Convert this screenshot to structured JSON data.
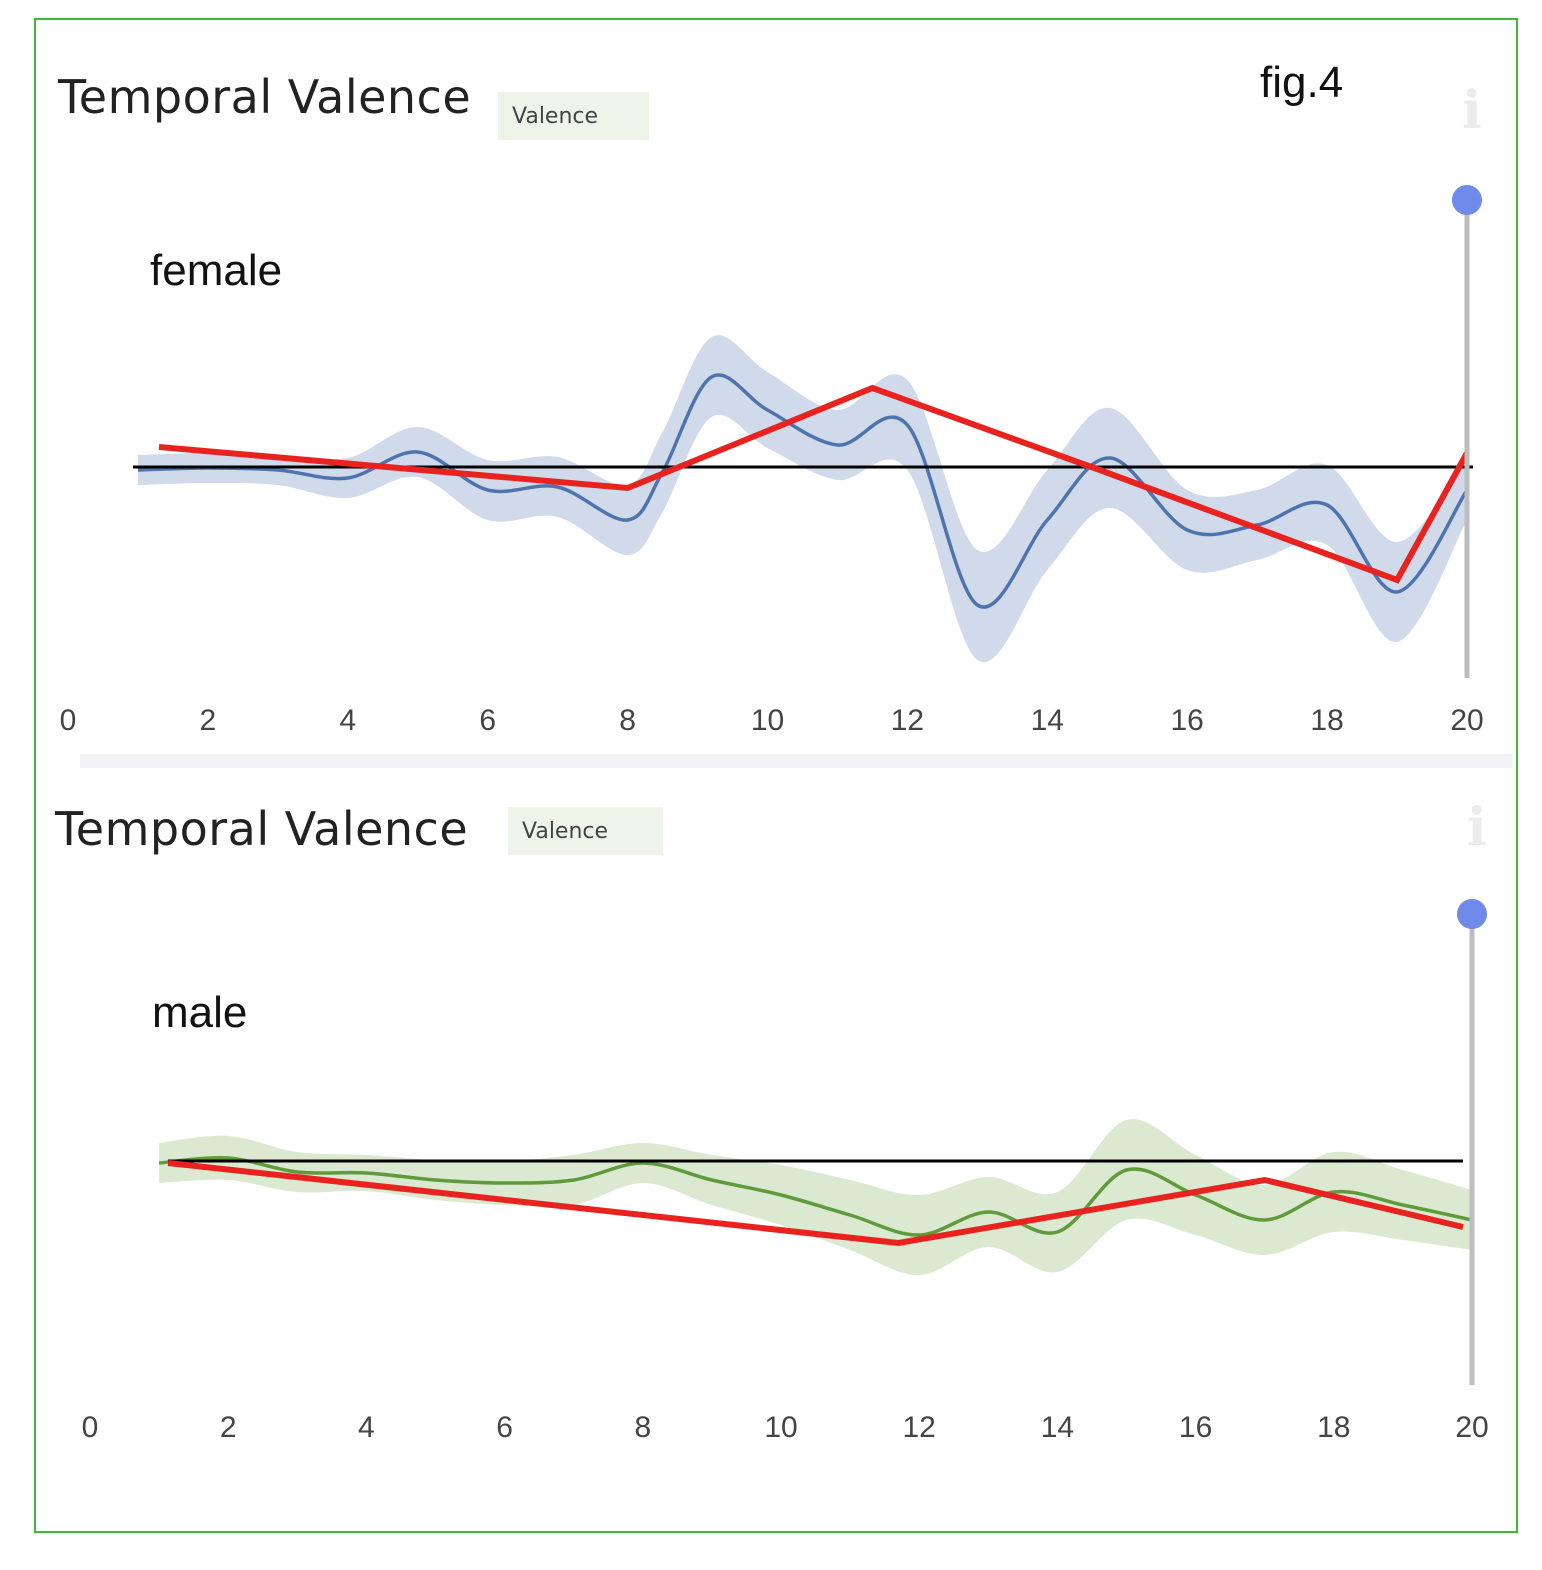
{
  "figure_label": "fig.4",
  "panels": [
    {
      "title": "Temporal Valence",
      "badge": "Valence",
      "group_label": "female"
    },
    {
      "title": "Temporal Valence",
      "badge": "Valence",
      "group_label": "male"
    }
  ],
  "colors": {
    "female": "#4f74ad",
    "female_band": "#cdd8ea",
    "male": "#5f9a3c",
    "male_band": "#d8e8cc",
    "trend": "#e8231f",
    "baseline": "#000000",
    "slider": "#6f8ae8",
    "frame": "#3cb83c"
  },
  "chart_data": [
    {
      "type": "line",
      "title": "Temporal Valence",
      "group": "female",
      "xlabel": "",
      "ylabel": "",
      "xlim": [
        0,
        20
      ],
      "xticks": [
        "0",
        "2",
        "4",
        "6",
        "8",
        "10",
        "12",
        "14",
        "16",
        "18",
        "20"
      ],
      "ylim": [
        -2.5,
        3.5
      ],
      "baseline": 0,
      "slider_position": 20,
      "series": [
        {
          "name": "mean",
          "x": [
            1,
            2,
            3,
            4,
            5,
            6,
            7,
            8,
            8.5,
            9.2,
            10,
            11,
            12,
            13,
            14,
            14.9,
            16,
            17,
            18,
            19,
            20
          ],
          "y": [
            -0.03,
            -0.01,
            -0.03,
            -0.11,
            0.15,
            -0.23,
            -0.2,
            -0.53,
            -0.05,
            0.9,
            0.57,
            0.22,
            0.42,
            -1.38,
            -0.53,
            0.09,
            -0.63,
            -0.58,
            -0.38,
            -1.25,
            -0.23
          ],
          "band": [
            0.15,
            0.15,
            0.15,
            0.2,
            0.25,
            0.3,
            0.3,
            0.35,
            0.4,
            0.4,
            0.38,
            0.35,
            0.45,
            0.55,
            0.5,
            0.5,
            0.4,
            0.35,
            0.4,
            0.5,
            0.3
          ]
        },
        {
          "name": "trend",
          "x": [
            1.3,
            8,
            11.5,
            14.75,
            19,
            20
          ],
          "y": [
            0.2,
            -0.21,
            0.79,
            -0.03,
            -1.13,
            0.14
          ]
        }
      ]
    },
    {
      "type": "line",
      "title": "Temporal Valence",
      "group": "male",
      "xlabel": "",
      "ylabel": "",
      "xlim": [
        0,
        20
      ],
      "xticks": [
        "0",
        "2",
        "4",
        "6",
        "8",
        "10",
        "12",
        "14",
        "16",
        "18",
        "20"
      ],
      "ylim": [
        -2.6,
        3.2
      ],
      "baseline": 0,
      "slider_position": 20,
      "series": [
        {
          "name": "mean",
          "x": [
            1,
            2,
            3,
            4,
            5,
            6,
            7,
            8,
            9,
            10,
            11,
            12,
            13,
            14,
            15,
            16,
            17,
            18,
            19,
            20
          ],
          "y": [
            -0.02,
            0.03,
            -0.11,
            -0.12,
            -0.19,
            -0.22,
            -0.19,
            -0.02,
            -0.19,
            -0.34,
            -0.54,
            -0.74,
            -0.51,
            -0.71,
            -0.09,
            -0.34,
            -0.59,
            -0.31,
            -0.44,
            -0.59
          ],
          "band": [
            0.2,
            0.22,
            0.2,
            0.18,
            0.2,
            0.22,
            0.25,
            0.2,
            0.25,
            0.3,
            0.35,
            0.4,
            0.35,
            0.4,
            0.5,
            0.4,
            0.35,
            0.4,
            0.35,
            0.3
          ]
        },
        {
          "name": "trend",
          "x": [
            1.13,
            11.7,
            17,
            19.87
          ],
          "y": [
            -0.02,
            -0.82,
            -0.19,
            -0.66
          ]
        }
      ]
    }
  ]
}
